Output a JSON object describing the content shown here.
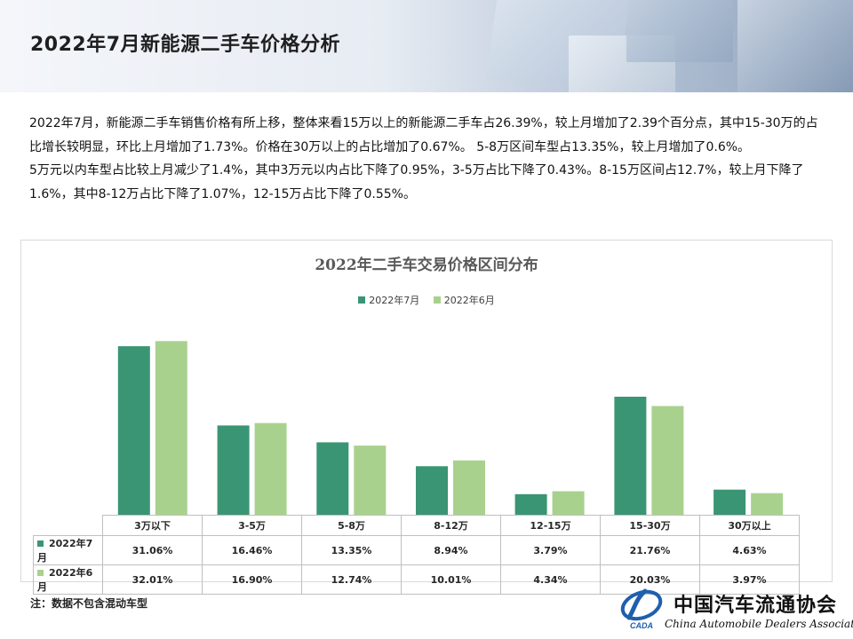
{
  "header": {
    "title": "2022年7月新能源二手车价格分析"
  },
  "paragraphs": [
    "2022年7月，新能源二手车销售价格有所上移，整体来看15万以上的新能源二手车占26.39%，较上月增加了2.39个百分点，其中15-30万的占比增长较明显，环比上月增加了1.73%。价格在30万以上的占比增加了0.67%。 5-8万区间车型占13.35%，较上月增加了0.6%。",
    "5万元以内车型占比较上月减少了1.4%，其中3万元以内占比下降了0.95%，3-5万占比下降了0.43%。8-15万区间占12.7%，较上月下降了1.6%，其中8-12万占比下降了1.07%，12-15万占比下降了0.55%。"
  ],
  "chart_data": {
    "type": "bar",
    "title": "2022年二手车交易价格区间分布",
    "categories": [
      "3万以下",
      "3-5万",
      "5-8万",
      "8-12万",
      "12-15万",
      "15-30万",
      "30万以上"
    ],
    "series": [
      {
        "name": "2022年7月",
        "values": [
          31.06,
          16.46,
          13.35,
          8.94,
          3.79,
          21.76,
          4.63
        ],
        "labels": [
          "31.06%",
          "16.46%",
          "13.35%",
          "8.94%",
          "3.79%",
          "21.76%",
          "4.63%"
        ],
        "color": "#3a9574"
      },
      {
        "name": "2022年6月",
        "values": [
          32.01,
          16.9,
          12.74,
          10.01,
          4.34,
          20.03,
          3.97
        ],
        "labels": [
          "32.01%",
          "16.90%",
          "12.74%",
          "10.01%",
          "4.34%",
          "20.03%",
          "3.97%"
        ],
        "color": "#a9d18e"
      }
    ],
    "ylim": [
      0,
      35
    ],
    "legend": "top-center",
    "grid": false,
    "data_table": true
  },
  "footnote": "注：数据不包含混动车型",
  "logo": {
    "name_cn": "中国汽车流通协会",
    "name_en": "China Automobile Dealers Association",
    "mark_text": "CADA"
  }
}
